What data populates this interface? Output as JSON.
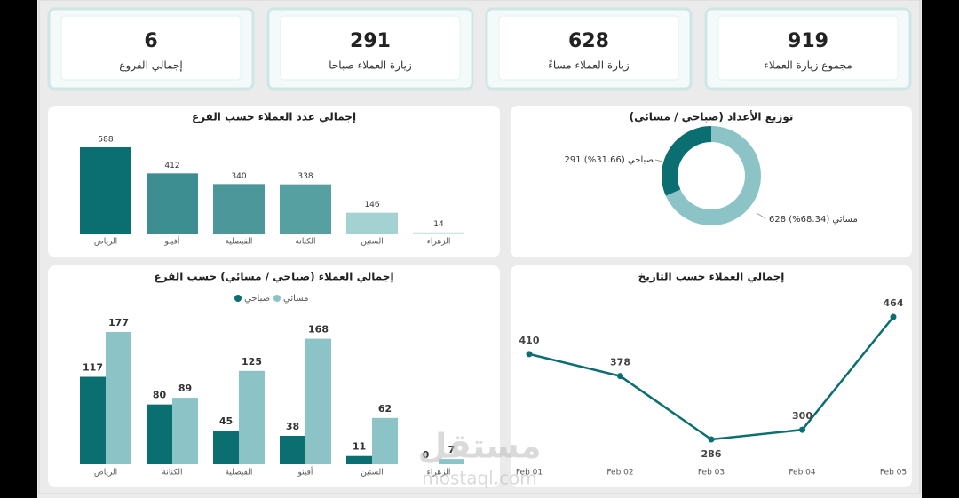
{
  "kpis": [
    {
      "value": 919,
      "label": "مجموع زيارة العملاء"
    },
    {
      "value": 628,
      "label": "زيارة العملاء مساءً"
    },
    {
      "value": 291,
      "label": "زيارة العملاء صباحا"
    },
    {
      "value": 6,
      "label": "إجمالي الفروع"
    }
  ],
  "chart_data": [
    {
      "type": "bar",
      "title": "إجمالي عدد العملاء حسب الفرع",
      "categories": [
        "الرياض",
        "أفينو",
        "الفيصلية",
        "الكنانة",
        "الستين",
        "الزهراء"
      ],
      "values": [
        588,
        412,
        340,
        338,
        146,
        14
      ],
      "colors": [
        "#0b6e70",
        "#3d8e90",
        "#4b979a",
        "#56a0a2",
        "#a4d1d2",
        "#cbe7e7"
      ]
    },
    {
      "type": "donut",
      "title": "توزيع الأعداد (صباحي / مسائي)",
      "values": [
        291,
        628
      ],
      "value_labels": [
        "291 صباحي (31.66%)",
        "628 مسائي (68.34%)"
      ],
      "colors": [
        "#0b6e70",
        "#8cc3c6"
      ]
    },
    {
      "type": "grouped-bar",
      "title": "إجمالي العملاء (صباحي / مسائي) حسب الفرع",
      "categories": [
        "الرياض",
        "الكنانة",
        "الفيصلية",
        "أفينو",
        "الستين",
        "الزهراء"
      ],
      "series": [
        {
          "name": "صباحي",
          "color": "#0b6e70",
          "values": [
            117,
            80,
            45,
            38,
            11,
            0
          ]
        },
        {
          "name": "مسائي",
          "color": "#8cc3c6",
          "values": [
            177,
            89,
            125,
            168,
            62,
            7
          ]
        }
      ]
    },
    {
      "type": "line",
      "title": "إجمالي العملاء حسب التاريخ",
      "categories": [
        "Feb 01",
        "Feb 02",
        "Feb 03",
        "Feb 04",
        "Feb 05"
      ],
      "values": [
        410,
        378,
        286,
        300,
        464
      ],
      "color": "#0b6e70"
    }
  ],
  "watermark": {
    "name": "مستقل",
    "url": "mostaql.com"
  }
}
